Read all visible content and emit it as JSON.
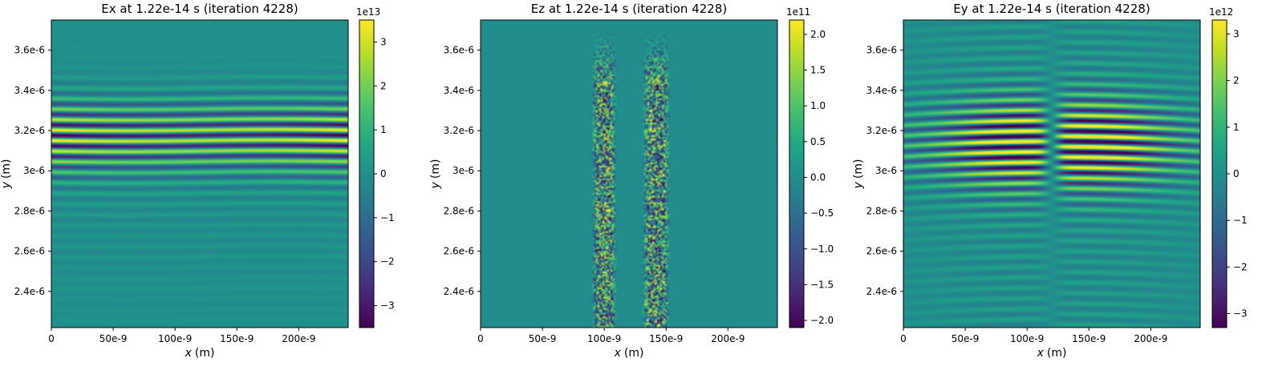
{
  "chart_data": [
    {
      "type": "heatmap",
      "title": "Ex at 1.22e-14 s   (iteration 4228)",
      "xlabel_var": "x",
      "xlabel_unit": "(m)",
      "ylabel_var": "y",
      "ylabel_unit": "(m)",
      "xlim": [
        0,
        2.4e-07
      ],
      "ylim": [
        2.22e-06,
        3.75e-06
      ],
      "xticks": [
        0,
        5e-08,
        1e-07,
        1.5e-07,
        2e-07
      ],
      "xtick_labels": [
        "0",
        "50e-9",
        "100e-9",
        "150e-9",
        "200e-9"
      ],
      "yticks": [
        2.4e-06,
        2.6e-06,
        2.8e-06,
        3e-06,
        3.2e-06,
        3.4e-06,
        3.6e-06
      ],
      "ytick_labels": [
        "2.4e-6",
        "2.6e-6",
        "2.8e-6",
        "3e-6",
        "3.2e-6",
        "3.4e-6",
        "3.6e-6"
      ],
      "colormap": "viridis",
      "color_range": [
        -3.5,
        3.5
      ],
      "color_scale_label": "1e13",
      "cbar_ticks": [
        -3,
        -2,
        -1,
        0,
        1,
        2,
        3
      ],
      "cbar_tick_labels": [
        "−3",
        "−2",
        "−1",
        "0",
        "1",
        "2",
        "3"
      ],
      "field_pattern": "horizontal-fringes"
    },
    {
      "type": "heatmap",
      "title": "Ez at 1.22e-14 s   (iteration 4228)",
      "xlabel_var": "x",
      "xlabel_unit": "(m)",
      "ylabel_var": "y",
      "ylabel_unit": "(m)",
      "xlim": [
        0,
        2.4e-07
      ],
      "ylim": [
        2.22e-06,
        3.75e-06
      ],
      "xticks": [
        0,
        5e-08,
        1e-07,
        1.5e-07,
        2e-07
      ],
      "xtick_labels": [
        "0",
        "50e-9",
        "100e-9",
        "150e-9",
        "200e-9"
      ],
      "yticks": [
        2.4e-06,
        2.6e-06,
        2.8e-06,
        3e-06,
        3.2e-06,
        3.4e-06,
        3.6e-06
      ],
      "ytick_labels": [
        "2.4e-6",
        "2.6e-6",
        "2.8e-6",
        "3e-6",
        "3.2e-6",
        "3.4e-6",
        "3.6e-6"
      ],
      "colormap": "viridis",
      "color_range": [
        -2.1,
        2.2
      ],
      "color_scale_label": "1e11",
      "cbar_ticks": [
        -2.0,
        -1.5,
        -1.0,
        -0.5,
        0.0,
        0.5,
        1.0,
        1.5,
        2.0
      ],
      "cbar_tick_labels": [
        "−2.0",
        "−1.5",
        "−1.0",
        "−0.5",
        "0.0",
        "0.5",
        "1.0",
        "1.5",
        "2.0"
      ],
      "field_pattern": "noisy-vertical-bands"
    },
    {
      "type": "heatmap",
      "title": "Ey at 1.22e-14 s   (iteration 4228)",
      "xlabel_var": "x",
      "xlabel_unit": "(m)",
      "ylabel_var": "y",
      "ylabel_unit": "(m)",
      "xlim": [
        0,
        2.4e-07
      ],
      "ylim": [
        2.22e-06,
        3.75e-06
      ],
      "xticks": [
        0,
        5e-08,
        1e-07,
        1.5e-07,
        2e-07
      ],
      "xtick_labels": [
        "0",
        "50e-9",
        "100e-9",
        "150e-9",
        "200e-9"
      ],
      "yticks": [
        2.4e-06,
        2.6e-06,
        2.8e-06,
        3e-06,
        3.2e-06,
        3.4e-06,
        3.6e-06
      ],
      "ytick_labels": [
        "2.4e-6",
        "2.6e-6",
        "2.8e-6",
        "3e-6",
        "3.2e-6",
        "3.4e-6",
        "3.6e-6"
      ],
      "colormap": "viridis",
      "color_range": [
        -3.3,
        3.3
      ],
      "color_scale_label": "1e12",
      "cbar_ticks": [
        -3,
        -2,
        -1,
        0,
        1,
        2,
        3
      ],
      "cbar_tick_labels": [
        "−3",
        "−2",
        "−1",
        "0",
        "1",
        "2",
        "3"
      ],
      "field_pattern": "fringes-antisymmetric-about-center"
    }
  ]
}
